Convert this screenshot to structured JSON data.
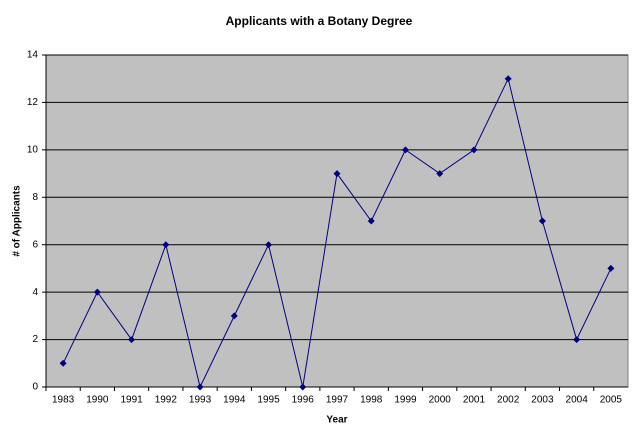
{
  "chart_data": {
    "type": "line",
    "title": "Applicants with a Botany Degree",
    "x_label": "Year",
    "y_label": "# of Applicants",
    "categories": [
      "1983",
      "1990",
      "1991",
      "1992",
      "1993",
      "1994",
      "1995",
      "1996",
      "1997",
      "1998",
      "1999",
      "2000",
      "2001",
      "2002",
      "2003",
      "2004",
      "2005"
    ],
    "values": [
      1,
      4,
      2,
      6,
      0,
      3,
      6,
      0,
      9,
      7,
      10,
      9,
      10,
      13,
      7,
      2,
      5
    ],
    "color": "#000080",
    "ylim": [
      0,
      14
    ],
    "yticks": [
      0,
      2,
      4,
      6,
      8,
      10,
      12,
      14
    ],
    "grid": true
  }
}
